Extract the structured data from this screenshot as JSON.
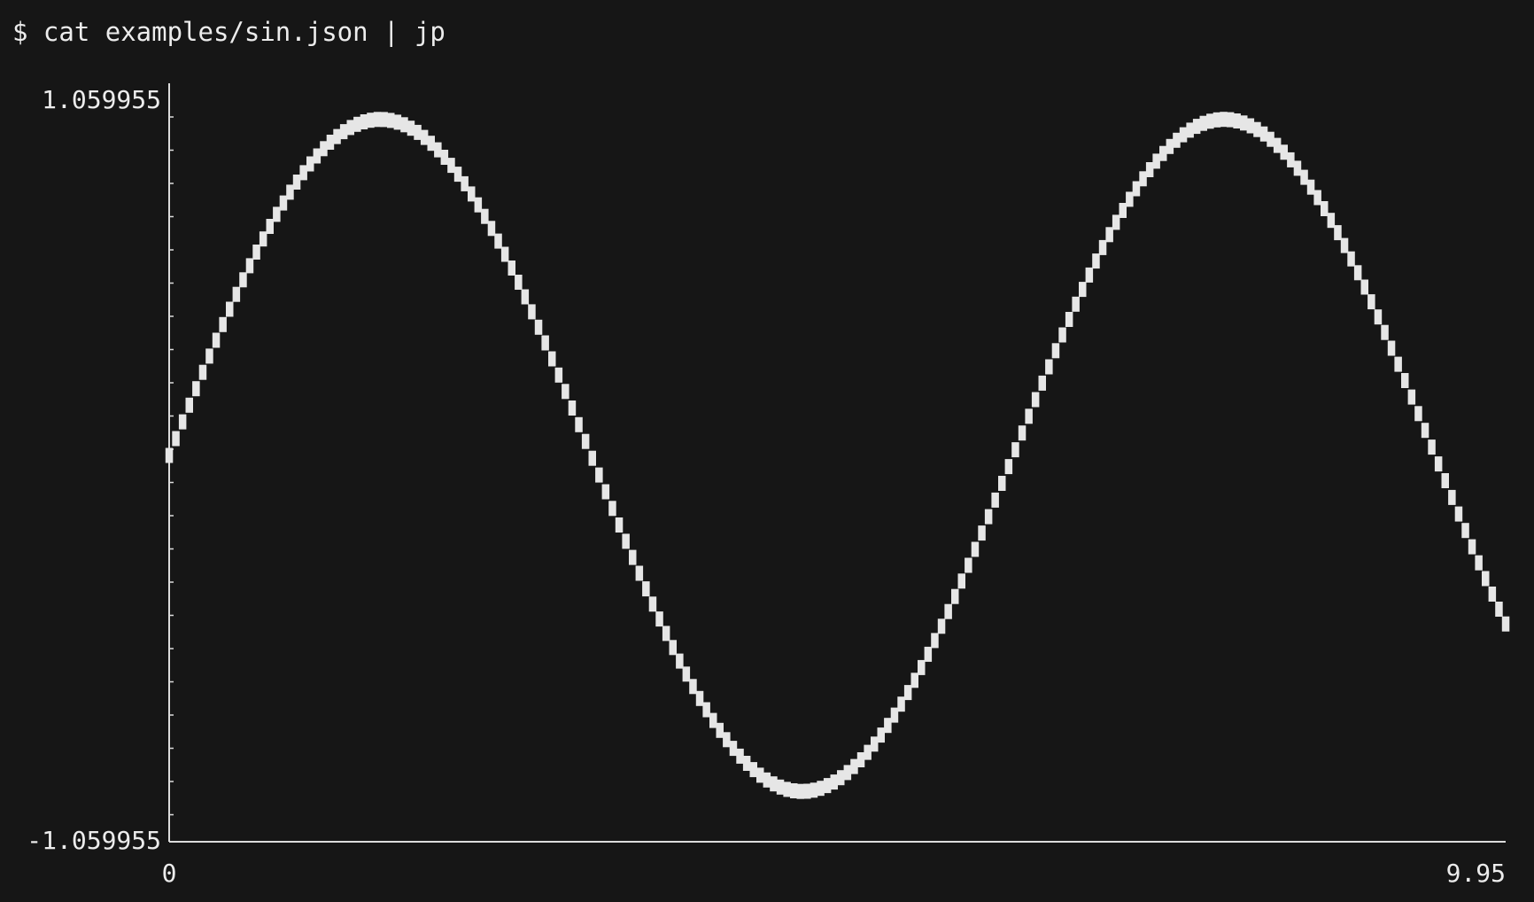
{
  "terminal": {
    "command": "$ cat examples/sin.json | jp"
  },
  "chart_data": {
    "type": "scatter",
    "style": "terminal-character-plot",
    "title": "",
    "xlabel": "",
    "ylabel": "",
    "xlim": [
      0,
      9.95
    ],
    "ylim": [
      -1.059955,
      1.059955
    ],
    "x_tick_labels": {
      "min": "0",
      "max": "9.95"
    },
    "y_tick_labels": {
      "max": "1.059955",
      "min": "-1.059955"
    },
    "function": "sin(x)",
    "x_step": 0.05,
    "grid": false,
    "legend": "none",
    "colors": {
      "background": "#161616",
      "foreground": "#e6e6e6"
    }
  }
}
